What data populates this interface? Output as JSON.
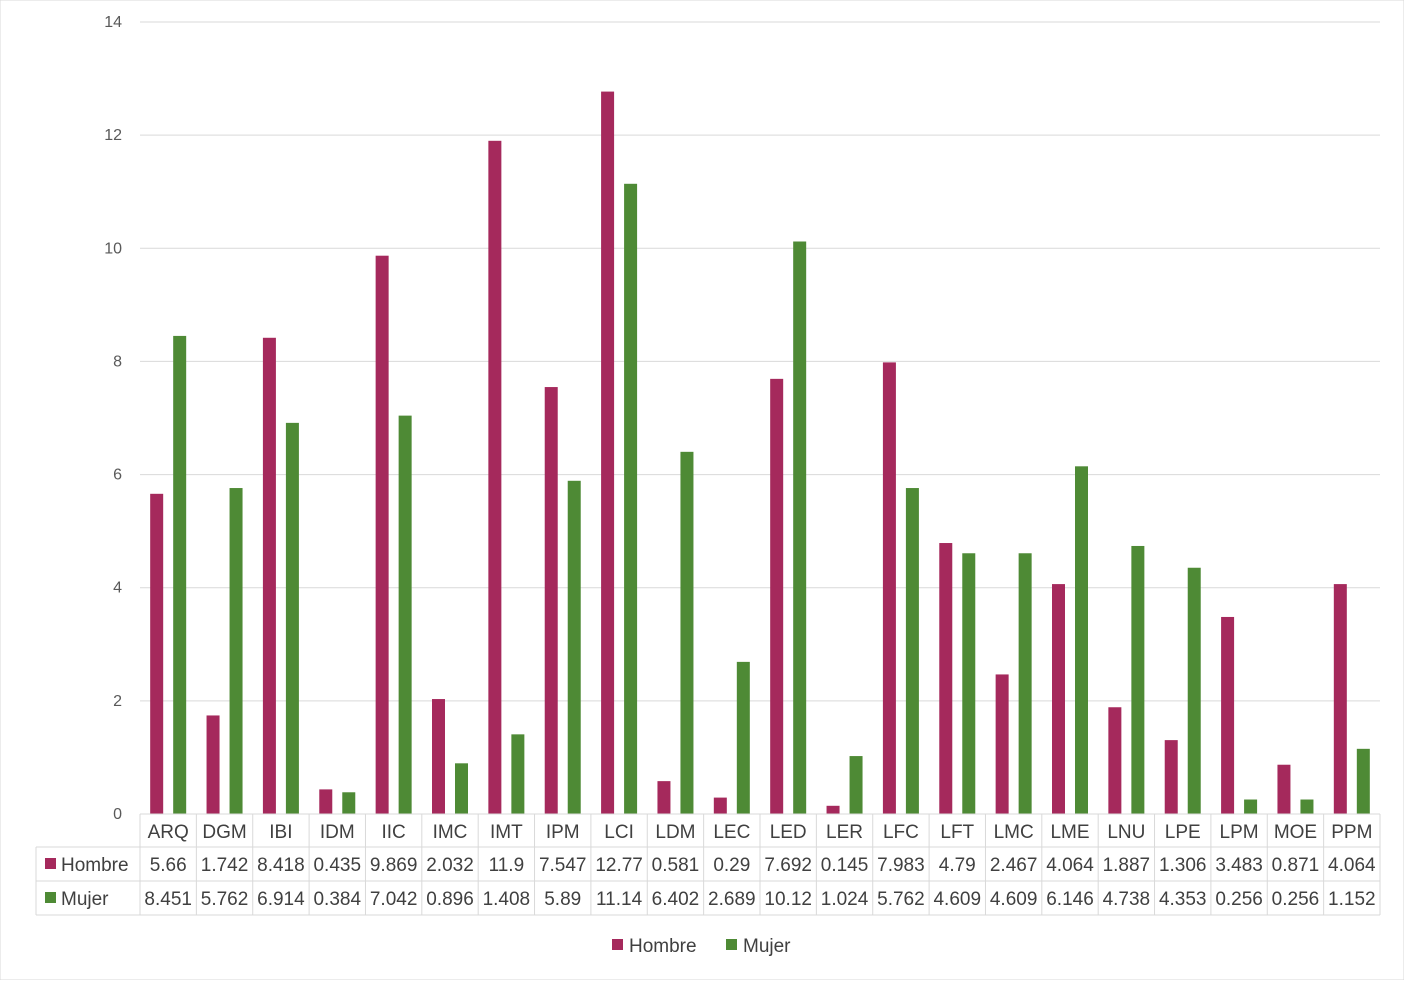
{
  "chart_data": {
    "type": "bar",
    "categories": [
      "ARQ",
      "DGM",
      "IBI",
      "IDM",
      "IIC",
      "IMC",
      "IMT",
      "IPM",
      "LCI",
      "LDM",
      "LEC",
      "LED",
      "LER",
      "LFC",
      "LFT",
      "LMC",
      "LME",
      "LNU",
      "LPE",
      "LPM",
      "MOE",
      "PPM"
    ],
    "series": [
      {
        "name": "Hombre",
        "color": "#a5295c",
        "values": [
          5.66,
          1.742,
          8.418,
          0.435,
          9.869,
          2.032,
          11.9,
          7.547,
          12.77,
          0.581,
          0.29,
          7.692,
          0.145,
          7.983,
          4.79,
          2.467,
          4.064,
          1.887,
          1.306,
          3.483,
          0.871,
          4.064
        ],
        "labels": [
          "5.66",
          "1.742",
          "8.418",
          "0.435",
          "9.869",
          "2.032",
          "11.9",
          "7.547",
          "12.77",
          "0.581",
          "0.29",
          "7.692",
          "0.145",
          "7.983",
          "4.79",
          "2.467",
          "4.064",
          "1.887",
          "1.306",
          "3.483",
          "0.871",
          "4.064"
        ]
      },
      {
        "name": "Mujer",
        "color": "#4e8a35",
        "values": [
          8.451,
          5.762,
          6.914,
          0.384,
          7.042,
          0.896,
          1.408,
          5.89,
          11.14,
          6.402,
          2.689,
          10.12,
          1.024,
          5.762,
          4.609,
          4.609,
          6.146,
          4.738,
          4.353,
          0.256,
          0.256,
          1.152
        ],
        "labels": [
          "8.451",
          "5.762",
          "6.914",
          "0.384",
          "7.042",
          "0.896",
          "1.408",
          "5.89",
          "11.14",
          "6.402",
          "2.689",
          "10.12",
          "1.024",
          "5.762",
          "4.609",
          "4.609",
          "6.146",
          "4.738",
          "4.353",
          "0.256",
          "0.256",
          "1.152"
        ]
      }
    ],
    "ylim": [
      0,
      14
    ],
    "yticks": [
      0,
      2,
      4,
      6,
      8,
      10,
      12,
      14
    ],
    "grid": true,
    "legend_position": "bottom",
    "data_table": true
  }
}
